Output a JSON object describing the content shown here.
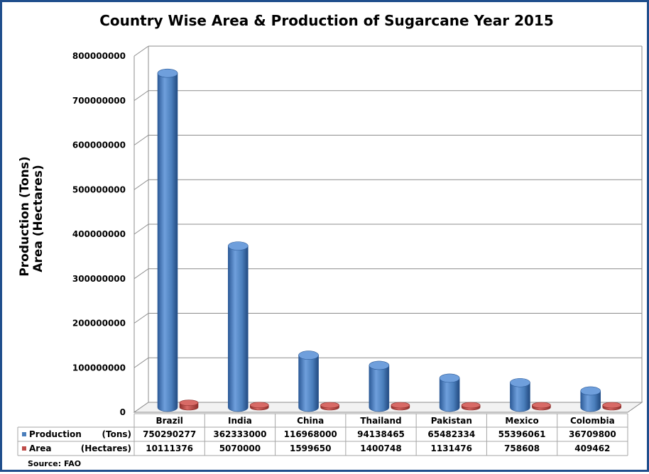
{
  "chart_data": {
    "type": "bar",
    "title": "Country Wise Area & Production of Sugarcane Year 2015",
    "ylabel_lines": [
      "Production (Tons)",
      "Area (Hectares)"
    ],
    "ylim": [
      0,
      800000000
    ],
    "yticks": [
      "800000000",
      "700000000",
      "600000000",
      "500000000",
      "400000000",
      "300000000",
      "200000000",
      "100000000",
      "0"
    ],
    "categories": [
      "Brazil",
      "India",
      "China",
      "Thailand",
      "Pakistan",
      "Mexico",
      "Colombia"
    ],
    "series": [
      {
        "name": "Production",
        "unit": "(Tons)",
        "color": "#4a7ebb",
        "values": [
          750290277,
          362333000,
          116968000,
          94138465,
          65482334,
          55396061,
          36709800
        ],
        "labels": [
          "750290277",
          "362333000",
          "116968000",
          "94138465",
          "65482334",
          "55396061",
          "36709800"
        ]
      },
      {
        "name": "Area",
        "unit": "(Hectares)",
        "color": "#be4b48",
        "values": [
          10111376,
          5070000,
          1599650,
          1400748,
          1131476,
          758608,
          409462
        ],
        "labels": [
          "10111376",
          "5070000",
          "1599650",
          "1400748",
          "1131476",
          "758608",
          "409462"
        ]
      }
    ],
    "grid": true,
    "legend": "data-table",
    "source": "Source: FAO"
  }
}
